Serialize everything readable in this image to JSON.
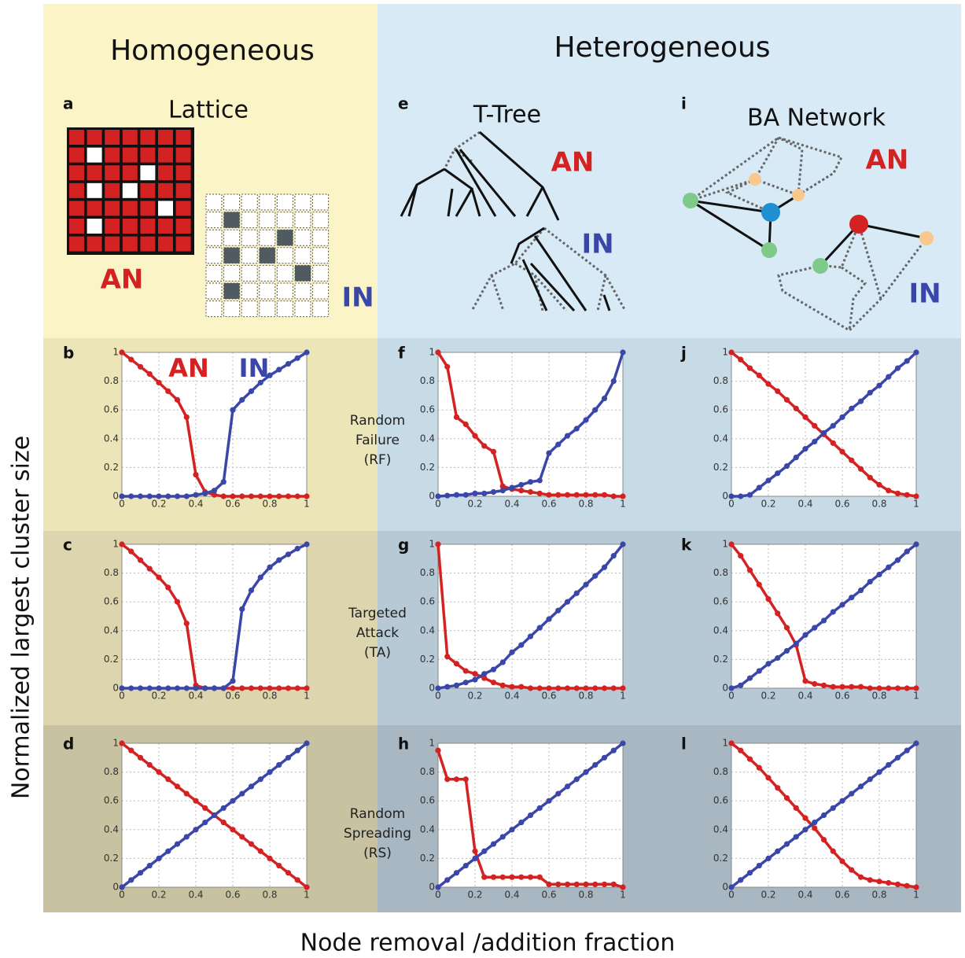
{
  "figure": {
    "y_label": "Normalized largest cluster size",
    "x_label": "Node removal /addition fraction",
    "columns": [
      "Homogeneous",
      "Heterogeneous"
    ],
    "row_labels": [
      [
        "Random",
        "Failure",
        "(RF)"
      ],
      [
        "Targeted",
        "Attack",
        "(TA)"
      ],
      [
        "Random",
        "Spreading",
        "(RS)"
      ]
    ]
  },
  "diagrams": [
    {
      "label": "a",
      "title": "Lattice",
      "an": "AN",
      "in": "IN"
    },
    {
      "label": "e",
      "title": "T-Tree",
      "an": "AN",
      "in": "IN"
    },
    {
      "label": "i",
      "title": "BA Network",
      "an": "AN",
      "in": "IN"
    }
  ],
  "chart_data": [
    {
      "type": "scatter",
      "label": "b",
      "x": [
        0,
        0.05,
        0.1,
        0.15,
        0.2,
        0.25,
        0.3,
        0.35,
        0.4,
        0.45,
        0.5,
        0.55,
        0.6,
        0.65,
        0.7,
        0.75,
        0.8,
        0.85,
        0.9,
        0.95,
        1
      ],
      "series": [
        {
          "name": "AN",
          "color": "#d42222",
          "values": [
            1,
            0.95,
            0.9,
            0.85,
            0.79,
            0.73,
            0.67,
            0.55,
            0.15,
            0.03,
            0.01,
            0,
            0,
            0,
            0,
            0,
            0,
            0,
            0,
            0,
            0
          ]
        },
        {
          "name": "IN",
          "color": "#3b47a8",
          "values": [
            0,
            0,
            0,
            0,
            0,
            0,
            0,
            0,
            0.01,
            0.02,
            0.04,
            0.1,
            0.6,
            0.67,
            0.73,
            0.79,
            0.84,
            0.88,
            0.92,
            0.96,
            1
          ]
        }
      ],
      "xlim": [
        0,
        1
      ],
      "ylim": [
        0,
        1
      ],
      "xticks": [
        0,
        0.2,
        0.4,
        0.6,
        0.8,
        1
      ],
      "yticks": [
        0,
        0.2,
        0.4,
        0.6,
        0.8,
        1
      ],
      "grid": true
    },
    {
      "type": "scatter",
      "label": "f",
      "x": [
        0,
        0.05,
        0.1,
        0.15,
        0.2,
        0.25,
        0.3,
        0.35,
        0.4,
        0.45,
        0.5,
        0.55,
        0.6,
        0.65,
        0.7,
        0.75,
        0.8,
        0.85,
        0.9,
        0.95,
        1
      ],
      "series": [
        {
          "color": "#d42222",
          "values": [
            1,
            0.9,
            0.55,
            0.5,
            0.42,
            0.35,
            0.31,
            0.07,
            0.05,
            0.04,
            0.03,
            0.02,
            0.01,
            0.01,
            0.01,
            0.01,
            0.01,
            0.01,
            0.01,
            0,
            0
          ]
        },
        {
          "color": "#3b47a8",
          "values": [
            0,
            0.005,
            0.01,
            0.01,
            0.02,
            0.02,
            0.03,
            0.04,
            0.06,
            0.08,
            0.1,
            0.11,
            0.3,
            0.36,
            0.42,
            0.47,
            0.53,
            0.6,
            0.68,
            0.8,
            1
          ]
        }
      ],
      "xlim": [
        0,
        1
      ],
      "ylim": [
        0,
        1
      ],
      "xticks": [
        0,
        0.2,
        0.4,
        0.6,
        0.8,
        1
      ],
      "yticks": [
        0,
        0.2,
        0.4,
        0.6,
        0.8,
        1
      ],
      "grid": true
    },
    {
      "type": "scatter",
      "label": "j",
      "x": [
        0,
        0.05,
        0.1,
        0.15,
        0.2,
        0.25,
        0.3,
        0.35,
        0.4,
        0.45,
        0.5,
        0.55,
        0.6,
        0.65,
        0.7,
        0.75,
        0.8,
        0.85,
        0.9,
        0.95,
        1
      ],
      "series": [
        {
          "color": "#d42222",
          "values": [
            1,
            0.95,
            0.89,
            0.84,
            0.78,
            0.73,
            0.67,
            0.61,
            0.55,
            0.49,
            0.43,
            0.37,
            0.31,
            0.25,
            0.19,
            0.13,
            0.08,
            0.04,
            0.02,
            0.01,
            0
          ]
        },
        {
          "color": "#3b47a8",
          "values": [
            0,
            0,
            0.01,
            0.06,
            0.11,
            0.16,
            0.21,
            0.27,
            0.33,
            0.38,
            0.44,
            0.49,
            0.55,
            0.61,
            0.66,
            0.72,
            0.77,
            0.83,
            0.89,
            0.94,
            1
          ]
        }
      ],
      "xlim": [
        0,
        1
      ],
      "ylim": [
        0,
        1
      ],
      "xticks": [
        0,
        0.2,
        0.4,
        0.6,
        0.8,
        1
      ],
      "yticks": [
        0,
        0.2,
        0.4,
        0.6,
        0.8,
        1
      ],
      "grid": true
    },
    {
      "type": "scatter",
      "label": "c",
      "x": [
        0,
        0.05,
        0.1,
        0.15,
        0.2,
        0.25,
        0.3,
        0.35,
        0.4,
        0.45,
        0.5,
        0.55,
        0.6,
        0.65,
        0.7,
        0.75,
        0.8,
        0.85,
        0.9,
        0.95,
        1
      ],
      "series": [
        {
          "color": "#d42222",
          "values": [
            1,
            0.95,
            0.89,
            0.83,
            0.77,
            0.7,
            0.6,
            0.45,
            0.02,
            0,
            0,
            0,
            0,
            0,
            0,
            0,
            0,
            0,
            0,
            0,
            0
          ]
        },
        {
          "color": "#3b47a8",
          "values": [
            0,
            0,
            0,
            0,
            0,
            0,
            0,
            0,
            0,
            0,
            0,
            0,
            0.05,
            0.55,
            0.68,
            0.77,
            0.84,
            0.89,
            0.93,
            0.97,
            1
          ]
        }
      ],
      "xlim": [
        0,
        1
      ],
      "ylim": [
        0,
        1
      ],
      "xticks": [
        0,
        0.2,
        0.4,
        0.6,
        0.8,
        1
      ],
      "yticks": [
        0,
        0.2,
        0.4,
        0.6,
        0.8,
        1
      ],
      "grid": true
    },
    {
      "type": "scatter",
      "label": "g",
      "x": [
        0,
        0.05,
        0.1,
        0.15,
        0.2,
        0.25,
        0.3,
        0.35,
        0.4,
        0.45,
        0.5,
        0.55,
        0.6,
        0.65,
        0.7,
        0.75,
        0.8,
        0.85,
        0.9,
        0.95,
        1
      ],
      "series": [
        {
          "color": "#d42222",
          "values": [
            1,
            0.22,
            0.17,
            0.12,
            0.1,
            0.07,
            0.04,
            0.02,
            0.01,
            0.01,
            0,
            0,
            0,
            0,
            0,
            0,
            0,
            0,
            0,
            0,
            0
          ]
        },
        {
          "color": "#3b47a8",
          "values": [
            0,
            0.01,
            0.02,
            0.04,
            0.06,
            0.1,
            0.13,
            0.18,
            0.25,
            0.3,
            0.36,
            0.42,
            0.48,
            0.54,
            0.6,
            0.66,
            0.72,
            0.78,
            0.84,
            0.92,
            1
          ]
        }
      ],
      "xlim": [
        0,
        1
      ],
      "ylim": [
        0,
        1
      ],
      "xticks": [
        0,
        0.2,
        0.4,
        0.6,
        0.8,
        1
      ],
      "yticks": [
        0,
        0.2,
        0.4,
        0.6,
        0.8,
        1
      ],
      "grid": true
    },
    {
      "type": "scatter",
      "label": "k",
      "x": [
        0,
        0.05,
        0.1,
        0.15,
        0.2,
        0.25,
        0.3,
        0.35,
        0.4,
        0.45,
        0.5,
        0.55,
        0.6,
        0.65,
        0.7,
        0.75,
        0.8,
        0.85,
        0.9,
        0.95,
        1
      ],
      "series": [
        {
          "color": "#d42222",
          "values": [
            1,
            0.92,
            0.82,
            0.72,
            0.62,
            0.52,
            0.42,
            0.3,
            0.05,
            0.03,
            0.02,
            0.01,
            0.01,
            0.01,
            0.01,
            0,
            0,
            0,
            0,
            0,
            0
          ]
        },
        {
          "color": "#3b47a8",
          "values": [
            0,
            0.02,
            0.07,
            0.12,
            0.17,
            0.21,
            0.26,
            0.31,
            0.37,
            0.42,
            0.47,
            0.53,
            0.58,
            0.63,
            0.68,
            0.74,
            0.79,
            0.84,
            0.89,
            0.95,
            1
          ]
        }
      ],
      "xlim": [
        0,
        1
      ],
      "ylim": [
        0,
        1
      ],
      "xticks": [
        0,
        0.2,
        0.4,
        0.6,
        0.8,
        1
      ],
      "yticks": [
        0,
        0.2,
        0.4,
        0.6,
        0.8,
        1
      ],
      "grid": true
    },
    {
      "type": "scatter",
      "label": "d",
      "x": [
        0,
        0.05,
        0.1,
        0.15,
        0.2,
        0.25,
        0.3,
        0.35,
        0.4,
        0.45,
        0.5,
        0.55,
        0.6,
        0.65,
        0.7,
        0.75,
        0.8,
        0.85,
        0.9,
        0.95,
        1
      ],
      "series": [
        {
          "color": "#d42222",
          "values": [
            1,
            0.95,
            0.9,
            0.85,
            0.8,
            0.75,
            0.7,
            0.65,
            0.6,
            0.55,
            0.5,
            0.45,
            0.4,
            0.35,
            0.3,
            0.25,
            0.2,
            0.15,
            0.1,
            0.05,
            0
          ]
        },
        {
          "color": "#3b47a8",
          "values": [
            0,
            0.05,
            0.1,
            0.15,
            0.2,
            0.25,
            0.3,
            0.35,
            0.4,
            0.45,
            0.5,
            0.55,
            0.6,
            0.65,
            0.7,
            0.75,
            0.8,
            0.85,
            0.9,
            0.95,
            1
          ]
        }
      ],
      "xlim": [
        0,
        1
      ],
      "ylim": [
        0,
        1
      ],
      "xticks": [
        0,
        0.2,
        0.4,
        0.6,
        0.8,
        1
      ],
      "yticks": [
        0,
        0.2,
        0.4,
        0.6,
        0.8,
        1
      ],
      "grid": true
    },
    {
      "type": "scatter",
      "label": "h",
      "x": [
        0,
        0.05,
        0.1,
        0.15,
        0.2,
        0.25,
        0.3,
        0.35,
        0.4,
        0.45,
        0.5,
        0.55,
        0.6,
        0.65,
        0.7,
        0.75,
        0.8,
        0.85,
        0.9,
        0.95,
        1
      ],
      "series": [
        {
          "color": "#d42222",
          "values": [
            0.95,
            0.75,
            0.75,
            0.75,
            0.25,
            0.07,
            0.07,
            0.07,
            0.07,
            0.07,
            0.07,
            0.07,
            0.02,
            0.02,
            0.02,
            0.02,
            0.02,
            0.02,
            0.02,
            0.02,
            0
          ]
        },
        {
          "color": "#3b47a8",
          "values": [
            0,
            0.05,
            0.1,
            0.15,
            0.2,
            0.25,
            0.3,
            0.35,
            0.4,
            0.45,
            0.5,
            0.55,
            0.6,
            0.65,
            0.7,
            0.75,
            0.8,
            0.85,
            0.9,
            0.95,
            1
          ]
        }
      ],
      "xlim": [
        0,
        1
      ],
      "ylim": [
        0,
        1
      ],
      "xticks": [
        0,
        0.2,
        0.4,
        0.6,
        0.8,
        1
      ],
      "yticks": [
        0,
        0.2,
        0.4,
        0.6,
        0.8,
        1
      ],
      "grid": true
    },
    {
      "type": "scatter",
      "label": "l",
      "x": [
        0,
        0.05,
        0.1,
        0.15,
        0.2,
        0.25,
        0.3,
        0.35,
        0.4,
        0.45,
        0.5,
        0.55,
        0.6,
        0.65,
        0.7,
        0.75,
        0.8,
        0.85,
        0.9,
        0.95,
        1
      ],
      "series": [
        {
          "color": "#d42222",
          "values": [
            1,
            0.95,
            0.89,
            0.83,
            0.76,
            0.69,
            0.62,
            0.55,
            0.48,
            0.41,
            0.33,
            0.25,
            0.18,
            0.12,
            0.07,
            0.05,
            0.04,
            0.03,
            0.02,
            0.01,
            0
          ]
        },
        {
          "color": "#3b47a8",
          "values": [
            0,
            0.05,
            0.1,
            0.15,
            0.2,
            0.25,
            0.3,
            0.35,
            0.4,
            0.45,
            0.5,
            0.55,
            0.6,
            0.65,
            0.7,
            0.75,
            0.8,
            0.85,
            0.9,
            0.95,
            1
          ]
        }
      ],
      "xlim": [
        0,
        1
      ],
      "ylim": [
        0,
        1
      ],
      "xticks": [
        0,
        0.2,
        0.4,
        0.6,
        0.8,
        1
      ],
      "yticks": [
        0,
        0.2,
        0.4,
        0.6,
        0.8,
        1
      ],
      "grid": true
    }
  ]
}
